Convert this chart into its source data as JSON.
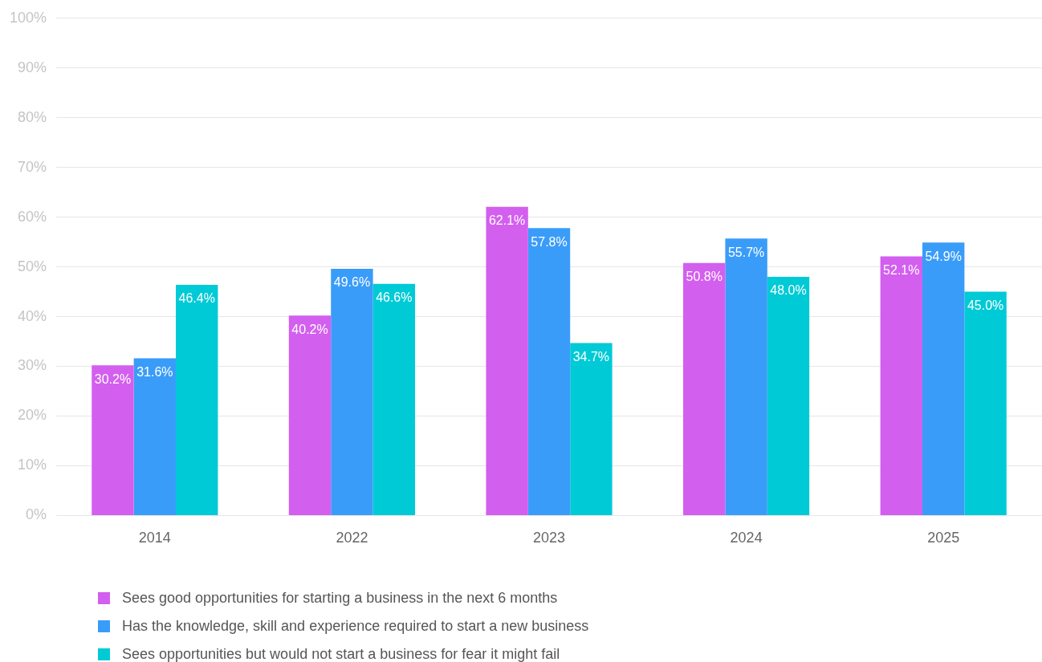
{
  "chart_data": {
    "type": "bar",
    "categories": [
      "2014",
      "2022",
      "2023",
      "2024",
      "2025"
    ],
    "series": [
      {
        "name": "Sees good opportunities for starting a business in the next 6 months",
        "color": "#d35fef",
        "values": [
          30.2,
          40.2,
          62.1,
          50.8,
          52.1
        ],
        "value_labels": [
          "30.2%",
          "40.2%",
          "62.1%",
          "50.8%",
          "52.1%"
        ]
      },
      {
        "name": "Has the knowledge, skill and experience required to start a new business",
        "color": "#3a9cf9",
        "values": [
          31.6,
          49.6,
          57.8,
          55.7,
          54.9
        ],
        "value_labels": [
          "31.6%",
          "49.6%",
          "57.8%",
          "55.7%",
          "54.9%"
        ]
      },
      {
        "name": "Sees opportunities but would not start a business for fear it might fail",
        "color": "#00cad6",
        "values": [
          46.4,
          46.6,
          34.7,
          48.0,
          45.0
        ],
        "value_labels": [
          "46.4%",
          "46.6%",
          "34.7%",
          "48.0%",
          "45.0%"
        ]
      }
    ],
    "ylim": [
      0,
      100
    ],
    "yticks": [
      {
        "value": 0,
        "label": "0%"
      },
      {
        "value": 10,
        "label": "10%"
      },
      {
        "value": 20,
        "label": "20%"
      },
      {
        "value": 30,
        "label": "30%"
      },
      {
        "value": 40,
        "label": "40%"
      },
      {
        "value": 50,
        "label": "50%"
      },
      {
        "value": 60,
        "label": "60%"
      },
      {
        "value": 70,
        "label": "70%"
      },
      {
        "value": 80,
        "label": "80%"
      },
      {
        "value": 90,
        "label": "90%"
      },
      {
        "value": 100,
        "label": "100%"
      }
    ],
    "grid": "y",
    "legend": "bottom"
  }
}
